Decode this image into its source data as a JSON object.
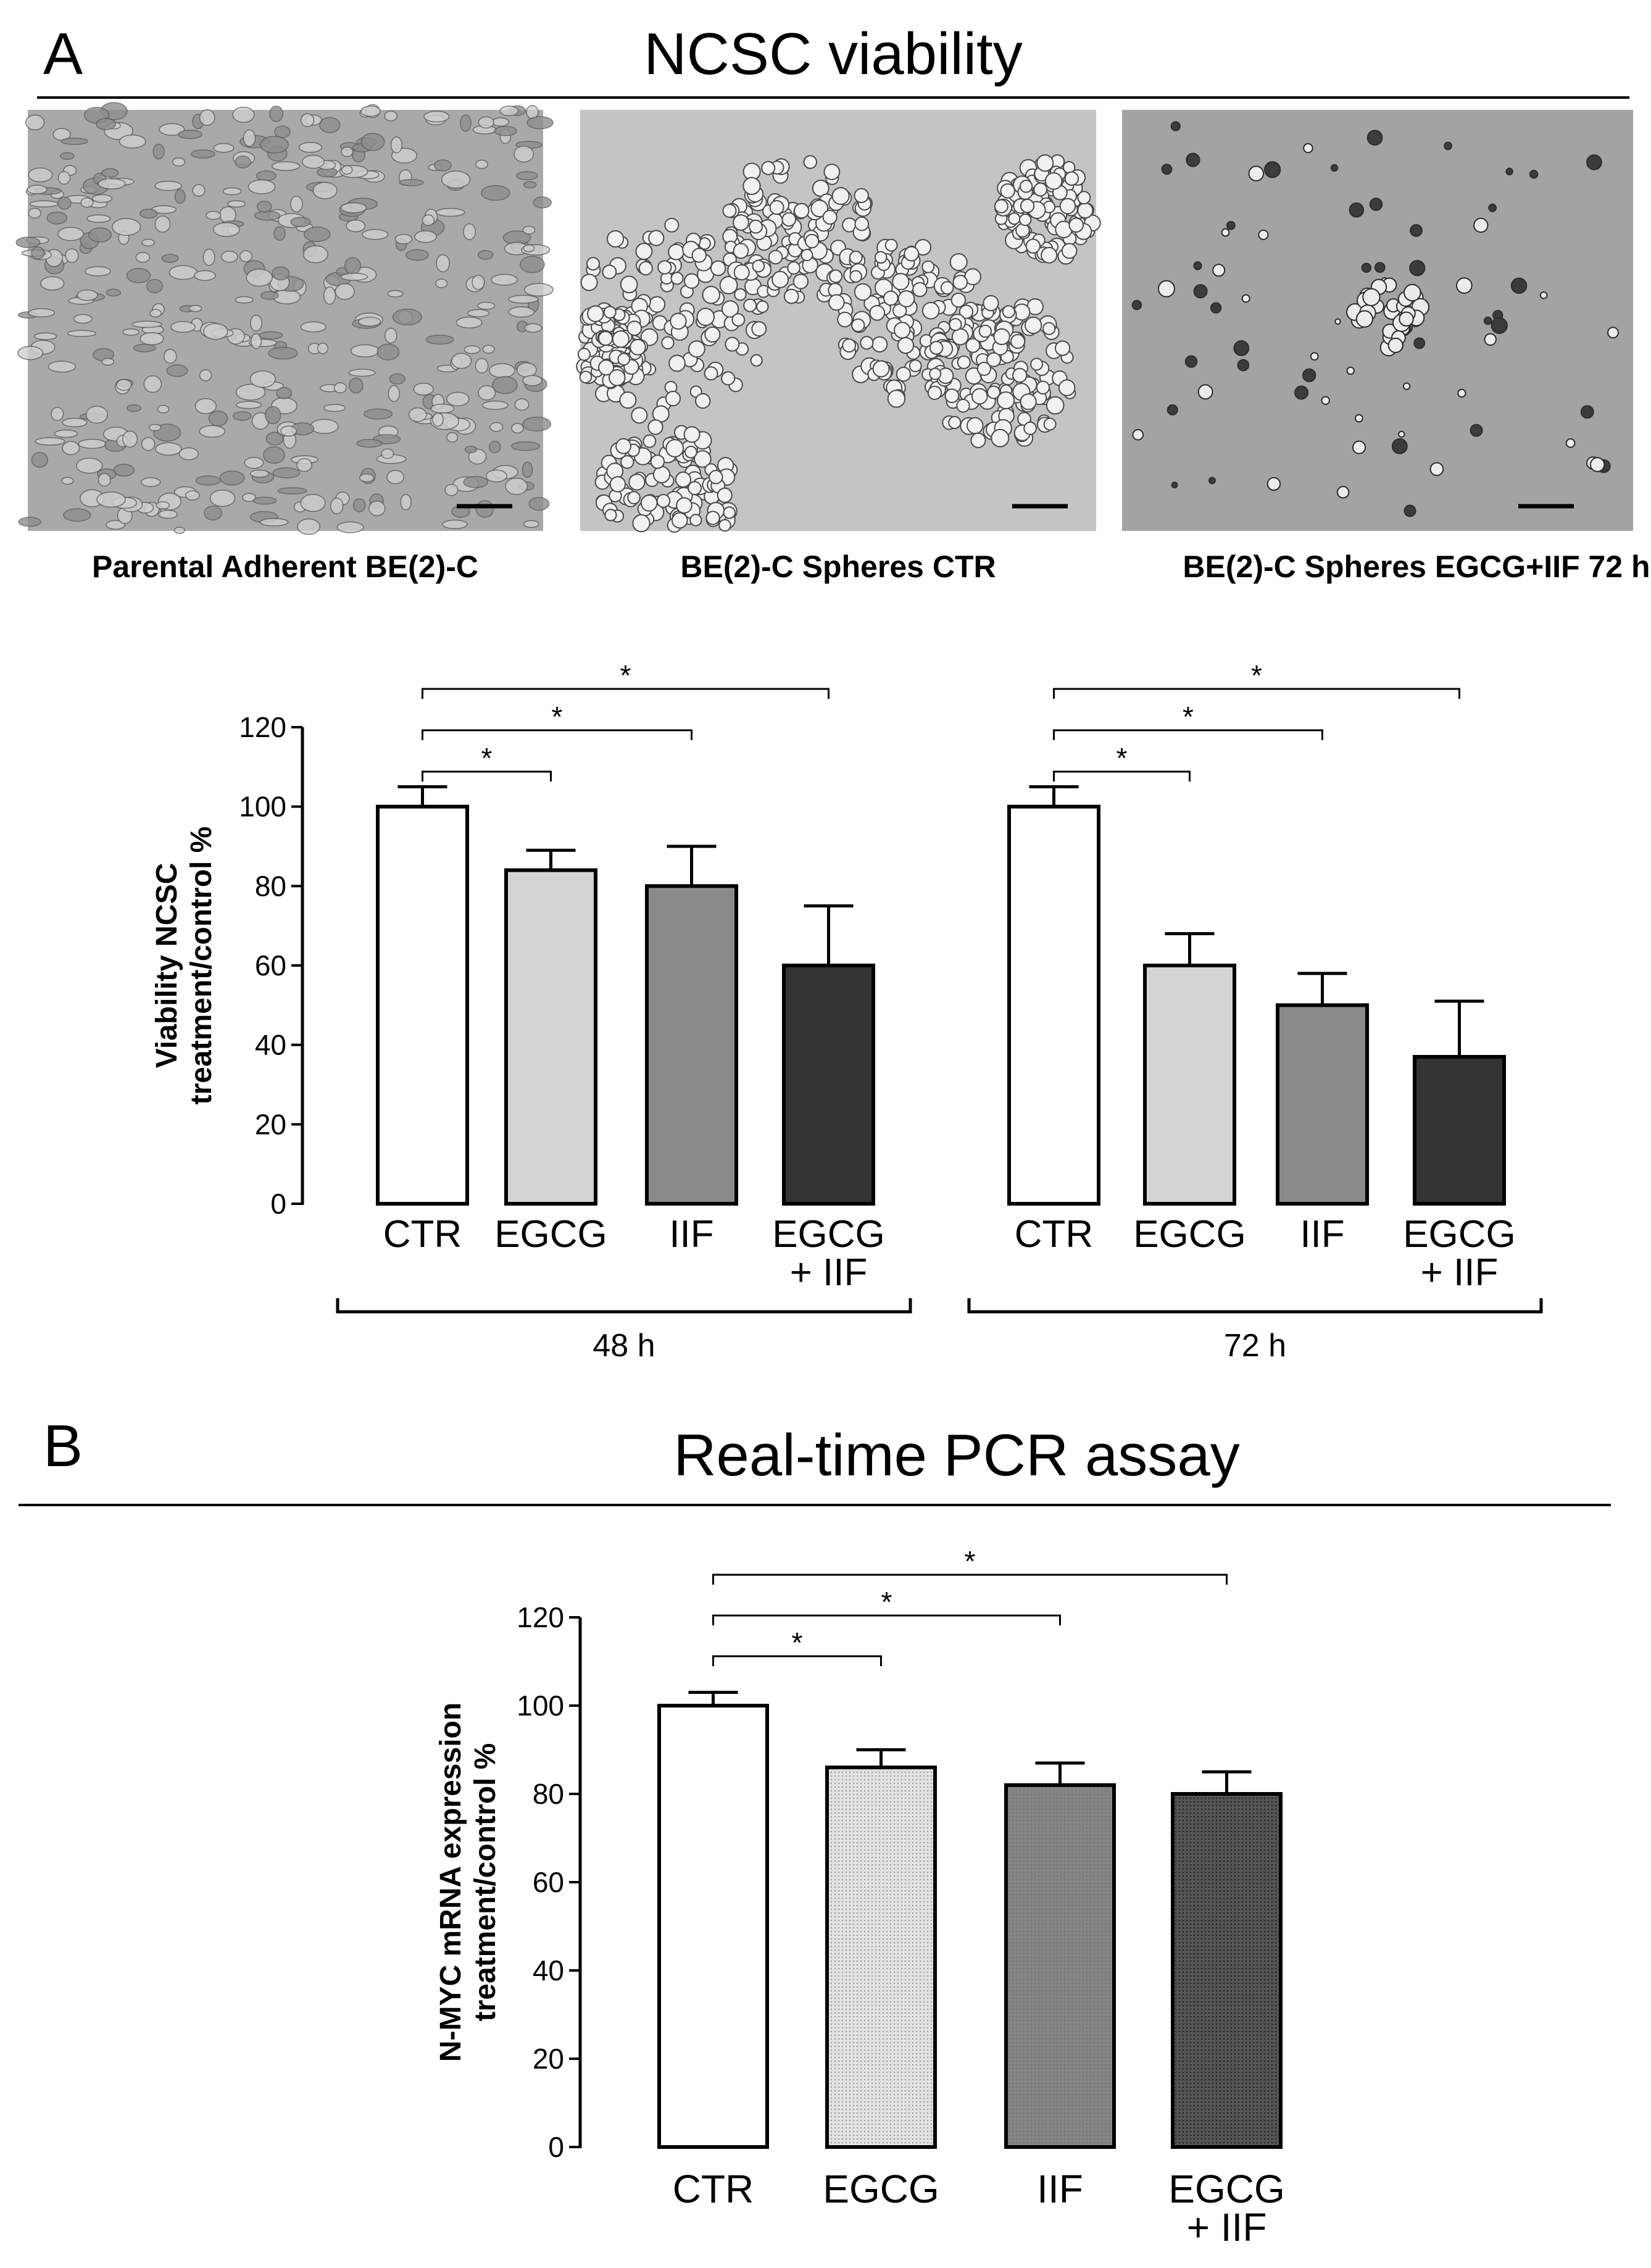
{
  "panel_a": {
    "letter": "A",
    "title": "NCSC viability",
    "photos": [
      {
        "caption": "Parental Adherent BE(2)-C",
        "tone": "#a9a9a9",
        "cell": "#cfcfcf",
        "edge": "#5a5a5a"
      },
      {
        "caption": "BE(2)-C Spheres CTR",
        "tone": "#c4c4c4",
        "cell": "#f1f1f1",
        "edge": "#4a4a4a"
      },
      {
        "caption": "BE(2)-C Spheres EGCG+IIF 72 h",
        "tone": "#a3a3a3",
        "cell": "#ececec",
        "edge": "#2c2c2c"
      }
    ]
  },
  "panel_b": {
    "letter": "B",
    "title": "Real-time PCR assay"
  },
  "chart_data": [
    {
      "type": "bar",
      "panel": "A",
      "ylabel": [
        "Viability NCSC",
        "treatment/control %"
      ],
      "ylim": [
        0,
        120
      ],
      "yticks": [
        0,
        20,
        40,
        60,
        80,
        100,
        120
      ],
      "groups": [
        {
          "name": "48 h",
          "categories": [
            [
              "CTR"
            ],
            [
              "EGCG"
            ],
            [
              "IIF"
            ],
            [
              "EGCG",
              "+ IIF"
            ]
          ],
          "values": [
            100,
            84,
            80,
            60
          ],
          "errors": [
            5,
            5,
            10,
            15
          ],
          "significance": [
            "*",
            "*",
            "*"
          ]
        },
        {
          "name": "72 h",
          "categories": [
            [
              "CTR"
            ],
            [
              "EGCG"
            ],
            [
              "IIF"
            ],
            [
              "EGCG",
              "+ IIF"
            ]
          ],
          "values": [
            100,
            60,
            50,
            37
          ],
          "errors": [
            5,
            8,
            8,
            14
          ],
          "significance": [
            "*",
            "*",
            "*"
          ]
        }
      ],
      "bar_fills": [
        "#ffffff",
        "#d4d4d4",
        "#8a8a8a",
        "#333333"
      ]
    },
    {
      "type": "bar",
      "panel": "B",
      "ylabel": [
        "N-MYC mRNA expression",
        "treatment/control %"
      ],
      "ylim": [
        0,
        120
      ],
      "yticks": [
        0,
        20,
        40,
        60,
        80,
        100,
        120
      ],
      "categories": [
        [
          "CTR"
        ],
        [
          "EGCG"
        ],
        [
          "IIF"
        ],
        [
          "EGCG",
          "+ IIF"
        ]
      ],
      "values": [
        100,
        86,
        82,
        80
      ],
      "errors": [
        3,
        4,
        5,
        5
      ],
      "significance": [
        "*",
        "*",
        "*"
      ],
      "bar_fills": [
        "#ffffff",
        "#d6d6d6",
        "#7a7a7a",
        "#4a4a4a"
      ]
    }
  ]
}
